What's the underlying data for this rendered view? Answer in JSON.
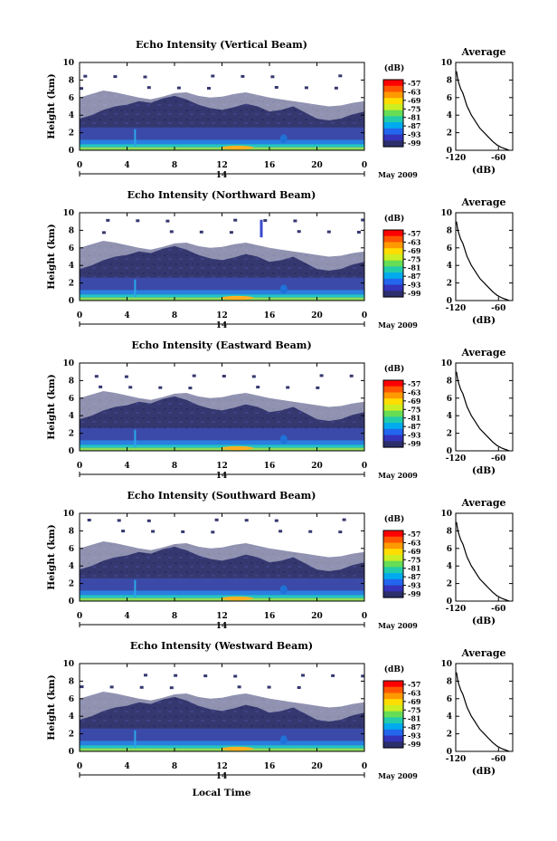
{
  "chart_data": {
    "type": "heatmap",
    "panels": [
      {
        "title": "Echo Intensity (Vertical Beam)"
      },
      {
        "title": "Echo Intensity (Northward Beam)"
      },
      {
        "title": "Echo Intensity (Eastward Beam)"
      },
      {
        "title": "Echo Intensity (Southward Beam)"
      },
      {
        "title": "Echo Intensity (Westward Beam)"
      }
    ],
    "ylabel": "Height (km)",
    "ylim": [
      0,
      10
    ],
    "yticks": [
      "0",
      "2",
      "4",
      "6",
      "8",
      "10"
    ],
    "xlim": [
      0,
      24
    ],
    "xticks": [
      "0",
      "4",
      "8",
      "12",
      "16",
      "20",
      "0"
    ],
    "date_day": "14",
    "month_label": "May 2009",
    "xlabel": "Local Time",
    "colorbar": {
      "unit": "(dB)",
      "labels": [
        "-57",
        "-63",
        "-69",
        "-75",
        "-81",
        "-87",
        "-93",
        "-99"
      ],
      "colors": [
        "#ff0000",
        "#ff5500",
        "#ff9900",
        "#ffdd00",
        "#ccee22",
        "#66dd55",
        "#22ccaa",
        "#00aaee",
        "#2266ee",
        "#3333bb",
        "#2c2f6b"
      ]
    },
    "profile": {
      "title": "Average",
      "xlabel": "(dB)",
      "xticks": [
        "-120",
        "-60"
      ],
      "xlim": [
        -120,
        -40
      ],
      "height": [
        0,
        0.3,
        0.6,
        1.0,
        1.5,
        2.0,
        2.5,
        3.0,
        3.5,
        4.0,
        4.5,
        5.0,
        5.5,
        6.0,
        6.5,
        7.0,
        7.5,
        8.0,
        8.5,
        9.0
      ],
      "value": [
        -45,
        -55,
        -62,
        -68,
        -74,
        -80,
        -86,
        -90,
        -94,
        -98,
        -101,
        -104,
        -106,
        -108,
        -110,
        -113,
        -115,
        -117,
        -118,
        -119
      ]
    }
  }
}
